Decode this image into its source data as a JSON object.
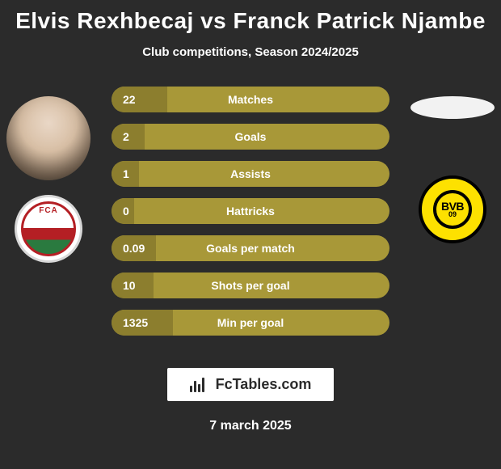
{
  "title": "Elvis Rexhbecaj vs Franck Patrick Njambe",
  "subtitle": "Club competitions, Season 2024/2025",
  "colors": {
    "background": "#2b2b2b",
    "bar_bg": "#a89838",
    "bar_fill": "#8c7e2e",
    "text": "#ffffff",
    "brand_bg": "#ffffff",
    "brand_text": "#2b2b2b",
    "fca_red": "#b41f24",
    "fca_green": "#2a7a3f",
    "bvb_yellow": "#fde100",
    "bvb_black": "#000000"
  },
  "players": {
    "left": {
      "name": "Elvis Rexhbecaj",
      "club": "FC Augsburg",
      "club_short": "FCA"
    },
    "right": {
      "name": "Franck Patrick Njambe",
      "club": "Borussia Dortmund",
      "club_short": "BVB",
      "club_year": "09"
    }
  },
  "stats": [
    {
      "label": "Matches",
      "value_left": "22",
      "fill_pct": 20
    },
    {
      "label": "Goals",
      "value_left": "2",
      "fill_pct": 12
    },
    {
      "label": "Assists",
      "value_left": "1",
      "fill_pct": 10
    },
    {
      "label": "Hattricks",
      "value_left": "0",
      "fill_pct": 8
    },
    {
      "label": "Goals per match",
      "value_left": "0.09",
      "fill_pct": 16
    },
    {
      "label": "Shots per goal",
      "value_left": "10",
      "fill_pct": 15
    },
    {
      "label": "Min per goal",
      "value_left": "1325",
      "fill_pct": 22
    }
  ],
  "brand": {
    "label": "FcTables.com"
  },
  "date": "7 march 2025"
}
